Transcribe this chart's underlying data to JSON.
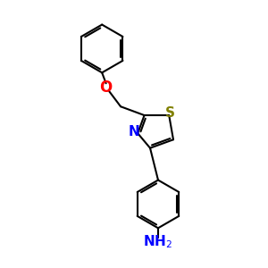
{
  "background_color": "#ffffff",
  "atom_colors": {
    "N": "#0000ff",
    "O": "#ff0000",
    "S": "#808000"
  },
  "bond_color": "#000000",
  "bond_width": 1.5,
  "font_size": 10,
  "dpi": 100
}
